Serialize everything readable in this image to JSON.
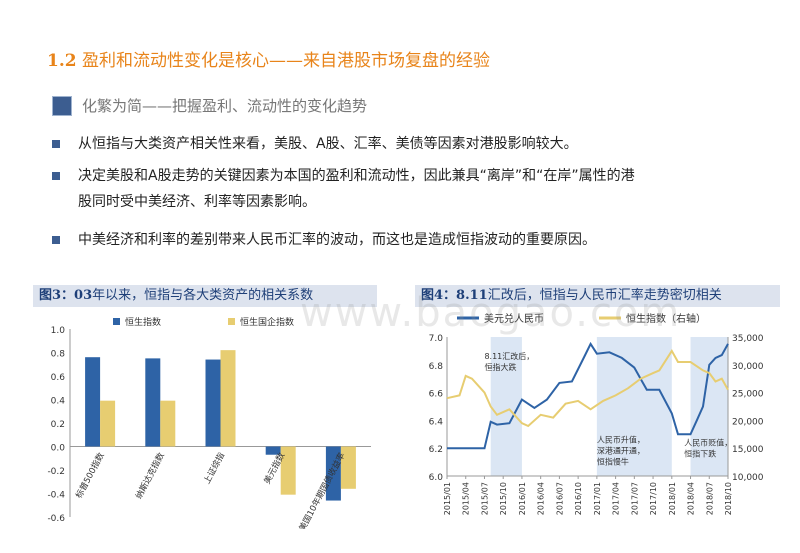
{
  "header": {
    "num": "1.2",
    "title": "盈利和流动性变化是核心——来自港股市场复盘的经验"
  },
  "subheading": "化繁为简——把握盈利、流动性的变化趋势",
  "bullets": [
    "从恒指与大类资产相关性来看，美股、A股、汇率、美债等因素对港股影响较大。",
    "决定美股和A股走势的关键因素为本国的盈利和流动性，因此兼具“离岸”和“在岸”属性的港",
    "股同时受中美经济、利率等因素影响。",
    "中美经济和利率的差别带来人民币汇率的波动，而这也是造成恒指波动的重要原因。"
  ],
  "watermark": "www.baogao.com",
  "chart_data": [
    {
      "type": "bar",
      "caption_num": "图3：03",
      "caption": "年以来，恒指与各大类资产的相关系数",
      "categories": [
        "标普500指数",
        "纳斯达克指数",
        "上证综指",
        "美元指数",
        "美国10年期国债收益率"
      ],
      "series": [
        {
          "name": "恒生指数",
          "color": "#2e63a6",
          "values": [
            0.76,
            0.75,
            0.74,
            -0.07,
            -0.46
          ]
        },
        {
          "name": "恒生国企指数",
          "color": "#e7cd71",
          "values": [
            0.39,
            0.39,
            0.82,
            -0.41,
            -0.36
          ]
        }
      ],
      "yticks": [
        "1.0",
        "0.8",
        "0.6",
        "0.4",
        "0.2",
        "0.0",
        "-0.2",
        "-0.4",
        "-0.6"
      ],
      "ylim": [
        -0.6,
        1.0
      ]
    },
    {
      "type": "line",
      "caption_num": "图4：8.11",
      "caption": "汇改后，恒指与人民币汇率走势密切相关",
      "series": [
        {
          "name": "美元兑人民币",
          "color": "#2e63a6",
          "axis": "left",
          "x": [
            "2015/01",
            "2015/03",
            "2015/05",
            "2015/07",
            "2015/08",
            "2015/09",
            "2015/11",
            "2016/01",
            "2016/03",
            "2016/05",
            "2016/07",
            "2016/09",
            "2016/11",
            "2016/12",
            "2017/01",
            "2017/03",
            "2017/05",
            "2017/07",
            "2017/09",
            "2017/11",
            "2018/01",
            "2018/02",
            "2018/03",
            "2018/04",
            "2018/05",
            "2018/06",
            "2018/07",
            "2018/08",
            "2018/09",
            "2018/10"
          ],
          "values": [
            6.2,
            6.2,
            6.2,
            6.2,
            6.39,
            6.37,
            6.38,
            6.55,
            6.49,
            6.55,
            6.67,
            6.68,
            6.86,
            6.95,
            6.88,
            6.89,
            6.85,
            6.78,
            6.62,
            6.62,
            6.45,
            6.3,
            6.3,
            6.3,
            6.4,
            6.5,
            6.8,
            6.85,
            6.87,
            6.95
          ]
        },
        {
          "name": "恒生指数（右轴）",
          "color": "#e7cd71",
          "axis": "right",
          "x": [
            "2015/01",
            "2015/03",
            "2015/04",
            "2015/05",
            "2015/07",
            "2015/08",
            "2015/09",
            "2015/11",
            "2016/01",
            "2016/02",
            "2016/04",
            "2016/06",
            "2016/08",
            "2016/10",
            "2016/12",
            "2017/02",
            "2017/04",
            "2017/06",
            "2017/08",
            "2017/10",
            "2017/11",
            "2018/01",
            "2018/02",
            "2018/04",
            "2018/06",
            "2018/07",
            "2018/08",
            "2018/09",
            "2018/10"
          ],
          "values": [
            24000,
            24500,
            28000,
            27500,
            25000,
            22500,
            21000,
            22000,
            19500,
            19000,
            21000,
            20500,
            23000,
            23500,
            22000,
            23500,
            24500,
            25800,
            27500,
            28500,
            29000,
            32500,
            30500,
            30500,
            29000,
            28500,
            27000,
            27500,
            25500
          ]
        }
      ],
      "x_ticks": [
        "2015/01",
        "2015/03",
        "2015/05",
        "2015/07",
        "2015/09",
        "2015/11",
        "2016/01",
        "2016/03",
        "2016/05",
        "2016/07",
        "2016/09",
        "2016/11",
        "2017/01",
        "2017/03",
        "2017/05",
        "2017/07",
        "2017/09",
        "2017/11",
        "2018/01",
        "2018/03",
        "2018/05",
        "2018/07",
        "2018/09"
      ],
      "x_tick_labels": [
        "2015/01",
        "2015/04",
        "2015/07",
        "2015/10",
        "2016/01",
        "2016/04",
        "2016/07",
        "2016/10",
        "2017/01",
        "2017/04",
        "2017/07",
        "2017/10",
        "2018/01",
        "2018/04",
        "2018/07",
        "2018/10"
      ],
      "yleft_ticks": [
        "7.0",
        "6.8",
        "6.6",
        "6.4",
        "6.2",
        "6.0"
      ],
      "yleft_lim": [
        6.0,
        7.0
      ],
      "yright_ticks": [
        "35,000",
        "30,000",
        "25,000",
        "20,000",
        "15,000",
        "10,000"
      ],
      "yright_lim": [
        10000,
        35000
      ],
      "shaded": [
        {
          "from": "2015/08",
          "to": "2016/01"
        },
        {
          "from": "2017/01",
          "to": "2018/01"
        },
        {
          "from": "2018/04",
          "to": "2018/10"
        }
      ],
      "annotations": [
        {
          "lines": [
            "8.11汇改后，",
            "恒指大跌"
          ],
          "x": "2015/07",
          "y": 6.84
        },
        {
          "lines": [
            "人民币升值，",
            "深港通开通，",
            "恒指慢牛"
          ],
          "x": "2017/01",
          "y": 6.24
        },
        {
          "lines": [
            "人民币贬值，",
            "恒指下跌"
          ],
          "x": "2018/03",
          "y": 6.22
        }
      ]
    }
  ]
}
